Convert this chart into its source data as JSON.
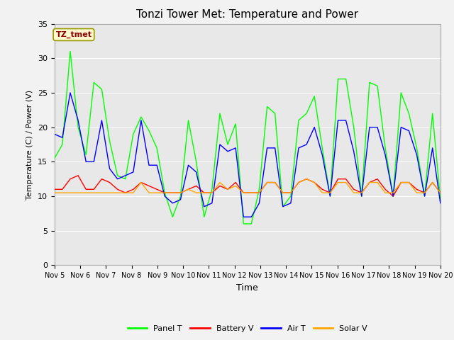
{
  "title": "Tonzi Tower Met: Temperature and Power",
  "xlabel": "Time",
  "ylabel": "Temperature (C) / Power (V)",
  "ylim": [
    0,
    35
  ],
  "xlim": [
    0,
    15
  ],
  "xtick_labels": [
    "Nov 5",
    "Nov 6",
    "Nov 7",
    "Nov 8",
    "Nov 9",
    "Nov 10",
    "Nov 11",
    "Nov 12",
    "Nov 13",
    "Nov 14",
    "Nov 15",
    "Nov 16",
    "Nov 17",
    "Nov 18",
    "Nov 19",
    "Nov 20"
  ],
  "xtick_positions": [
    0,
    1,
    2,
    3,
    4,
    5,
    6,
    7,
    8,
    9,
    10,
    11,
    12,
    13,
    14,
    15
  ],
  "label_box_text": "TZ_tmet",
  "colors": {
    "panel_t": "#00FF00",
    "battery_v": "#FF0000",
    "air_t": "#0000FF",
    "solar_v": "#FFA500"
  },
  "legend_labels": [
    "Panel T",
    "Battery V",
    "Air T",
    "Solar V"
  ],
  "plot_bg": "#E8E8E8",
  "fig_bg": "#F2F2F2",
  "grid_color": "#FFFFFF",
  "panel_t": [
    15.5,
    17.5,
    31.0,
    20.0,
    16.0,
    26.5,
    25.5,
    18.0,
    13.0,
    12.5,
    19.0,
    21.5,
    19.5,
    17.0,
    10.5,
    7.0,
    10.0,
    21.0,
    15.0,
    7.0,
    11.0,
    22.0,
    17.5,
    20.5,
    6.0,
    6.0,
    11.0,
    23.0,
    22.0,
    8.5,
    10.0,
    21.0,
    22.0,
    24.5,
    17.0,
    10.0,
    27.0,
    27.0,
    20.0,
    10.0,
    26.5,
    26.0,
    17.0,
    10.0,
    25.0,
    22.0,
    17.0,
    10.0,
    22.0,
    9.5
  ],
  "battery_v": [
    11.0,
    11.0,
    12.5,
    13.0,
    11.0,
    11.0,
    12.5,
    12.0,
    11.0,
    10.5,
    11.0,
    12.0,
    11.5,
    11.0,
    10.5,
    10.5,
    10.5,
    11.0,
    11.5,
    10.5,
    10.5,
    11.5,
    11.0,
    12.0,
    10.5,
    10.5,
    10.5,
    12.0,
    12.0,
    10.5,
    10.5,
    12.0,
    12.5,
    12.0,
    11.0,
    10.5,
    12.5,
    12.5,
    11.0,
    10.5,
    12.0,
    12.5,
    11.0,
    10.0,
    12.0,
    12.0,
    11.0,
    10.5,
    12.0,
    10.5
  ],
  "air_t": [
    19.0,
    18.5,
    25.0,
    21.0,
    15.0,
    15.0,
    21.0,
    14.0,
    12.5,
    13.0,
    13.5,
    21.0,
    14.5,
    14.5,
    10.0,
    9.0,
    9.5,
    14.5,
    13.5,
    8.5,
    9.0,
    17.5,
    16.5,
    17.0,
    7.0,
    7.0,
    9.0,
    17.0,
    17.0,
    8.5,
    9.0,
    17.0,
    17.5,
    20.0,
    16.0,
    10.0,
    21.0,
    21.0,
    16.5,
    10.0,
    20.0,
    20.0,
    16.0,
    10.0,
    20.0,
    19.5,
    16.0,
    10.0,
    17.0,
    9.0
  ],
  "solar_v": [
    10.5,
    10.5,
    10.5,
    10.5,
    10.5,
    10.5,
    10.5,
    10.5,
    10.5,
    10.5,
    10.5,
    12.0,
    10.5,
    10.5,
    10.5,
    10.5,
    10.5,
    11.0,
    10.5,
    10.5,
    10.5,
    12.0,
    11.0,
    11.5,
    10.5,
    10.5,
    10.5,
    12.0,
    12.0,
    10.5,
    10.5,
    12.0,
    12.5,
    12.0,
    10.5,
    10.5,
    12.0,
    12.0,
    10.5,
    10.5,
    12.0,
    12.0,
    10.5,
    10.5,
    12.0,
    12.0,
    10.5,
    10.5,
    12.0,
    10.5
  ]
}
